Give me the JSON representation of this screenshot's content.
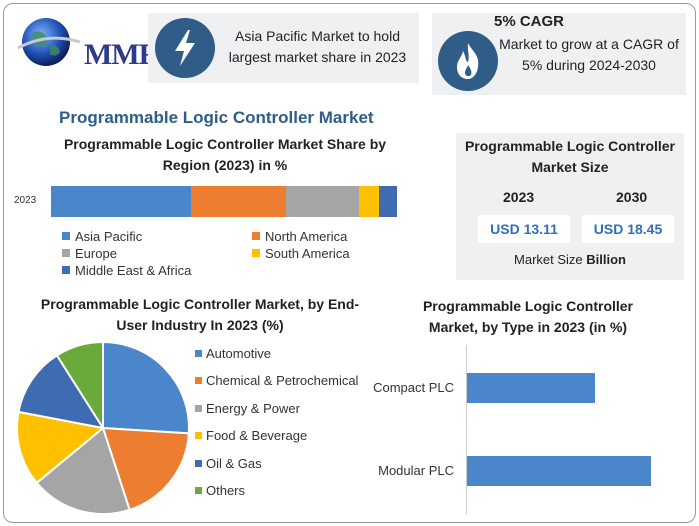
{
  "logo": {
    "text": "MMR"
  },
  "callouts": [
    {
      "icon": "lightning-icon",
      "text": "Asia Pacific Market to hold largest market share in 2023"
    },
    {
      "icon": "flame-icon",
      "heading": "5% CAGR",
      "text": "Market to grow at a CAGR of 5% during 2024-2030"
    }
  ],
  "main_title": "Programmable Logic Controller Market",
  "market_size": {
    "title": "Programmable Logic Controller Market Size",
    "year1": "2023",
    "year2": "2030",
    "value1": "USD 13.11",
    "value2": "USD 18.45",
    "unit_prefix": "Market Size ",
    "unit_bold": "Billion"
  },
  "colors": {
    "asia_pacific": "#4a86c9",
    "north_america": "#ed7d31",
    "europe": "#a5a5a5",
    "south_america": "#ffc000",
    "mea": "#3f6bb0",
    "others": "#6aaa3a",
    "accent": "#2f5d87"
  },
  "chart_data": [
    {
      "type": "bar",
      "orientation": "horizontal-stacked",
      "title": "Programmable Logic Controller Market Share by Region (2023) in %",
      "categories": [
        "2023"
      ],
      "series": [
        {
          "name": "Asia Pacific",
          "values": [
            40.5
          ]
        },
        {
          "name": "North America",
          "values": [
            27.5
          ]
        },
        {
          "name": "Europe",
          "values": [
            21
          ]
        },
        {
          "name": "South America",
          "values": [
            5.7
          ]
        },
        {
          "name": "Middle East & Africa",
          "values": [
            5.3
          ]
        }
      ],
      "legend": "bottom"
    },
    {
      "type": "pie",
      "title": "Programmable Logic Controller Market, by End-User Industry In 2023 (%)",
      "categories": [
        "Automotive",
        "Chemical & Petrochemical",
        "Energy & Power",
        "Food & Beverage",
        "Oil & Gas",
        "Others"
      ],
      "values": [
        26,
        19,
        19,
        14,
        13,
        9
      ],
      "legend": "right"
    },
    {
      "type": "bar",
      "orientation": "horizontal",
      "title": "Programmable Logic Controller Market, by Type in 2023 (in %)",
      "categories": [
        "Compact PLC",
        "Modular PLC"
      ],
      "values": [
        41,
        59
      ],
      "xlim": [
        0,
        64
      ]
    }
  ]
}
